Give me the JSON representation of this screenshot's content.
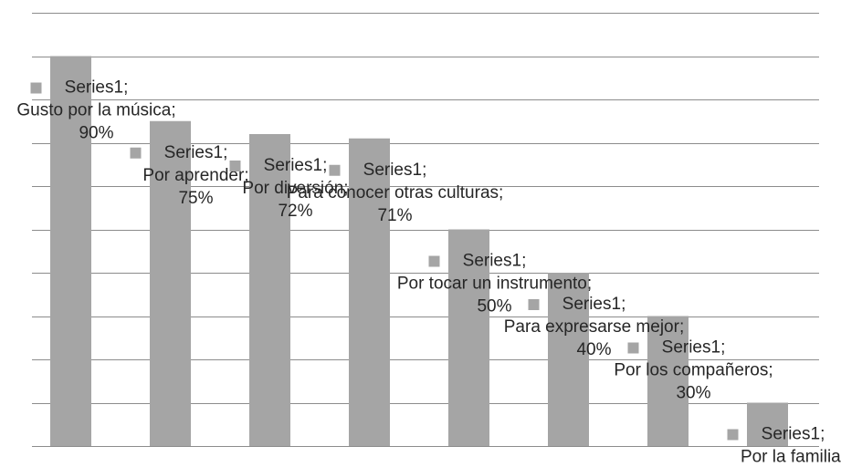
{
  "chart_data": {
    "type": "bar",
    "categories": [
      "Gusto por la música",
      "Por aprender",
      "Por diversión",
      "Para conocer otras culturas",
      "Por tocar un instrumento",
      "Para expresarse mejor",
      "Por los compañeros",
      "Por la familia"
    ],
    "series": [
      {
        "name": "Series1",
        "color": "#a5a5a5",
        "values": [
          90,
          75,
          72,
          71,
          50,
          40,
          30,
          10
        ],
        "value_labels": [
          "90%",
          "75%",
          "72%",
          "71%",
          "50%",
          "40%",
          "30%",
          "10%"
        ]
      }
    ],
    "label_separator": ";",
    "ylim": [
      0,
      100
    ],
    "yticks": [
      0,
      10,
      20,
      30,
      40,
      50,
      60,
      70,
      80,
      90,
      100
    ],
    "grid": true
  }
}
